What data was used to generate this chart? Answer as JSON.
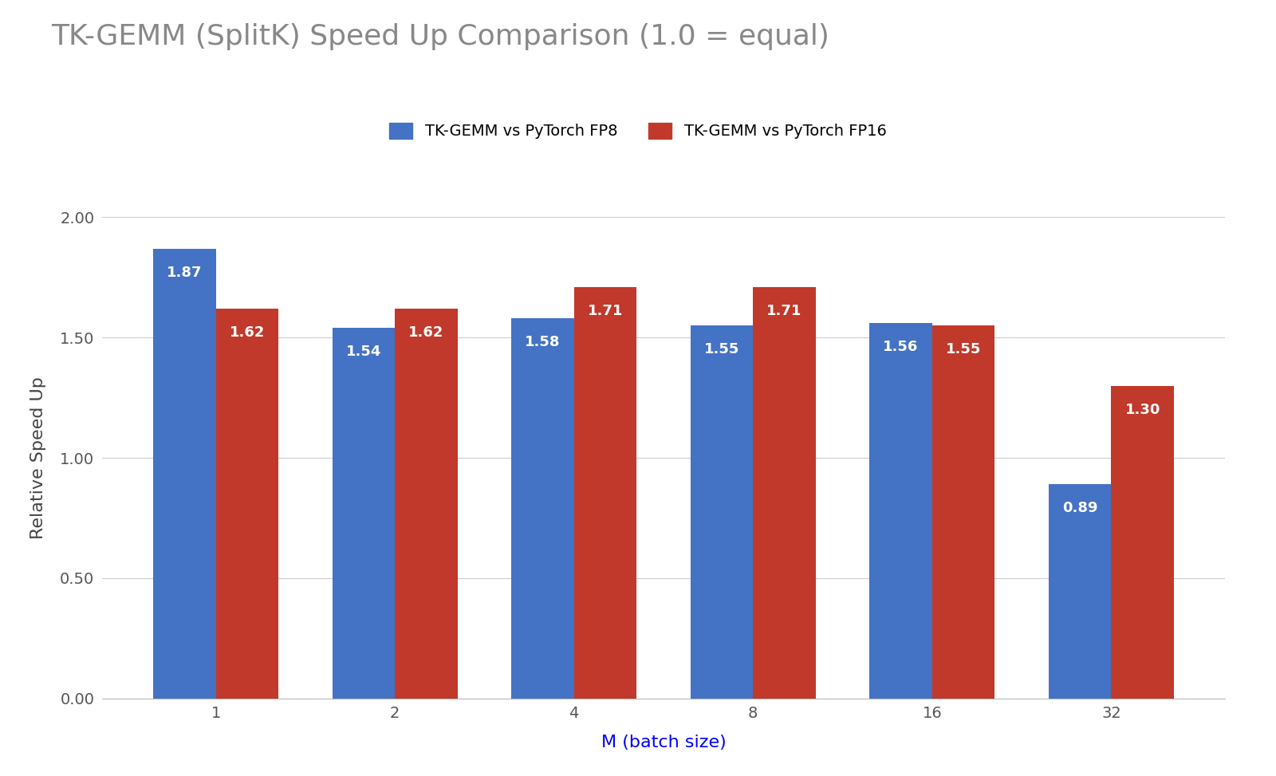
{
  "title": "TK-GEMM (SplitK) Speed Up Comparison (1.0 = equal)",
  "xlabel": "M (batch size)",
  "ylabel": "Relative Speed Up",
  "categories": [
    1,
    2,
    4,
    8,
    16,
    32
  ],
  "fp8_values": [
    1.87,
    1.54,
    1.58,
    1.55,
    1.56,
    0.89
  ],
  "fp16_values": [
    1.62,
    1.62,
    1.71,
    1.71,
    1.55,
    1.3
  ],
  "fp8_color": "#4472C4",
  "fp16_color": "#C0392B",
  "legend_fp8": "TK-GEMM vs PyTorch FP8",
  "legend_fp16": "TK-GEMM vs PyTorch FP16",
  "ylim": [
    0.0,
    2.0
  ],
  "yticks": [
    0.0,
    0.5,
    1.0,
    1.5,
    2.0
  ],
  "background_color": "#ffffff",
  "grid_color": "#cccccc",
  "title_color": "#888888",
  "xlabel_color": "#0000FF",
  "ylabel_color": "#444444",
  "bar_width": 0.35,
  "label_fontsize": 13,
  "title_fontsize": 26,
  "axis_label_fontsize": 16,
  "tick_fontsize": 14,
  "legend_fontsize": 14
}
